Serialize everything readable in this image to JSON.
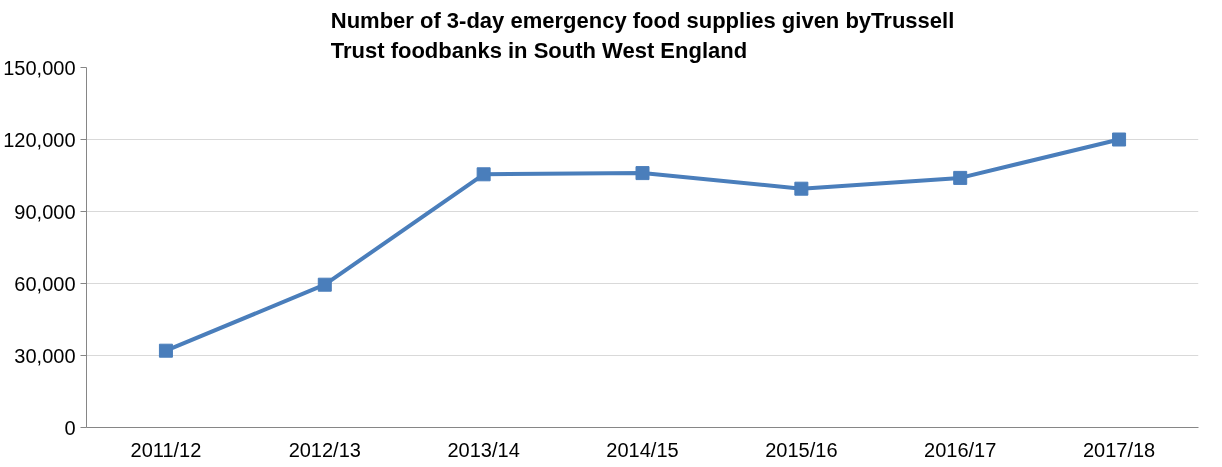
{
  "chart_data": {
    "type": "line",
    "title": "Number of 3-day emergency food supplies given byTrussell Trust foodbanks in South West England",
    "categories": [
      "2011/12",
      "2012/13",
      "2013/14",
      "2014/15",
      "2015/16",
      "2016/17",
      "2017/18"
    ],
    "series": [
      {
        "color": "#4a7ebb",
        "values": [
          32000,
          59500,
          105500,
          106000,
          99500,
          104000,
          120000
        ]
      }
    ],
    "ylim": [
      0,
      150000
    ],
    "yticks": [
      {
        "value": 0,
        "label": "0"
      },
      {
        "value": 30000,
        "label": "30,000"
      },
      {
        "value": 60000,
        "label": "60,000"
      },
      {
        "value": 90000,
        "label": "90,000"
      },
      {
        "value": 120000,
        "label": "120,000"
      },
      {
        "value": 150000,
        "label": "150,000"
      }
    ],
    "grid": "y",
    "marker": "square",
    "line_style": "solid"
  }
}
